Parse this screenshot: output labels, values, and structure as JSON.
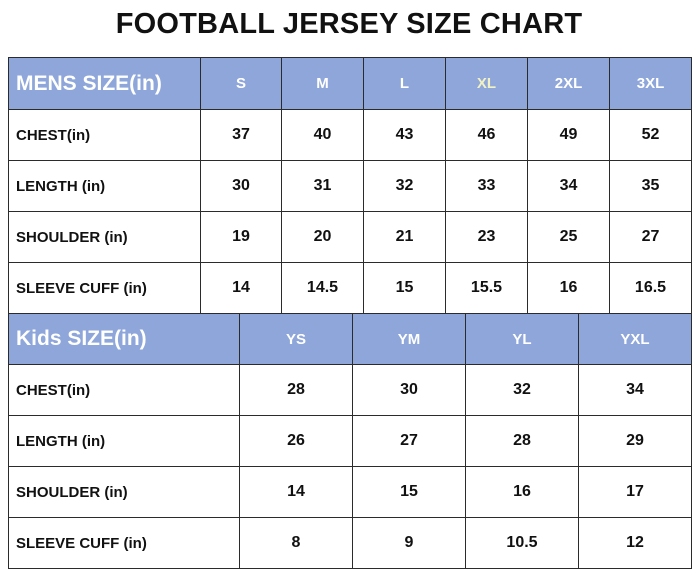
{
  "title": "FOOTBALL JERSEY SIZE CHART",
  "mens": {
    "header": "MENS SIZE(in)",
    "sizes": [
      "S",
      "M",
      "L",
      "XL",
      "2XL",
      "3XL"
    ],
    "rows": [
      {
        "label": "CHEST(in)",
        "values": [
          "37",
          "40",
          "43",
          "46",
          "49",
          "52"
        ]
      },
      {
        "label": "LENGTH (in)",
        "values": [
          "30",
          "31",
          "32",
          "33",
          "34",
          "35"
        ]
      },
      {
        "label": "SHOULDER (in)",
        "values": [
          "19",
          "20",
          "21",
          "23",
          "25",
          "27"
        ]
      },
      {
        "label": "SLEEVE CUFF (in)",
        "values": [
          "14",
          "14.5",
          "15",
          "15.5",
          "16",
          "16.5"
        ]
      }
    ]
  },
  "kids": {
    "header": "Kids SIZE(in)",
    "sizes": [
      "YS",
      "YM",
      "YL",
      "YXL"
    ],
    "rows": [
      {
        "label": "CHEST(in)",
        "values": [
          "28",
          "30",
          "32",
          "34"
        ]
      },
      {
        "label": "LENGTH (in)",
        "values": [
          "26",
          "27",
          "28",
          "29"
        ]
      },
      {
        "label": "SHOULDER (in)",
        "values": [
          "14",
          "15",
          "16",
          "17"
        ]
      },
      {
        "label": "SLEEVE CUFF (in)",
        "values": [
          "8",
          "9",
          "10.5",
          "12"
        ]
      }
    ]
  },
  "colors": {
    "header_bg": "#8ea6d9",
    "header_text": "#ffffff",
    "xl_header_text": "#f1f1c4",
    "border": "#2b2b2b"
  }
}
